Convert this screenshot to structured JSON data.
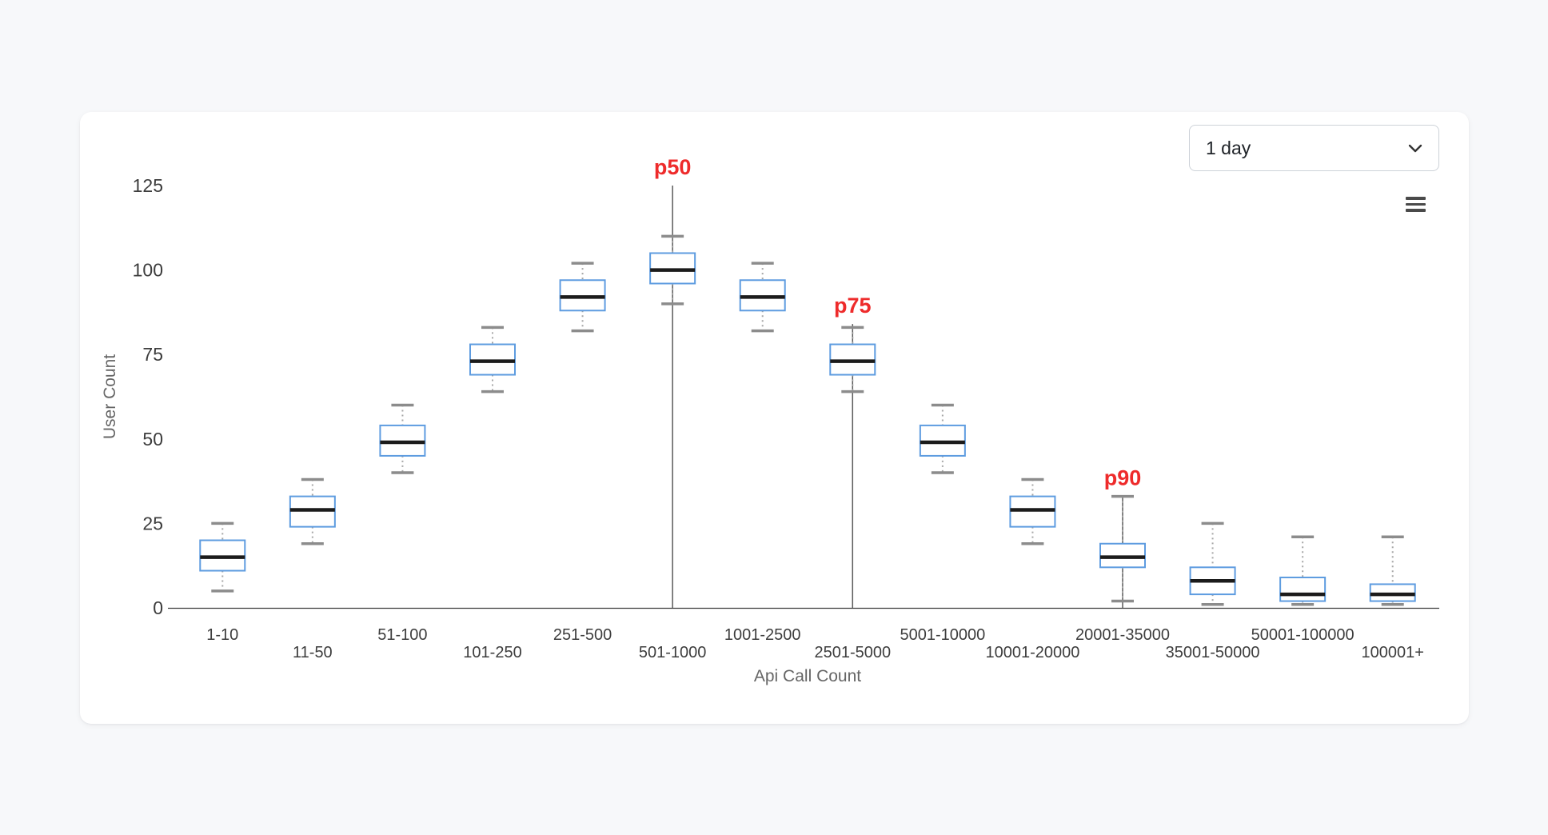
{
  "controls": {
    "period_selector": {
      "value": "1 day",
      "icon": "chevron-down-icon"
    },
    "menu_button": {
      "icon": "hamburger-menu-icon"
    }
  },
  "chart_data": {
    "type": "boxplot",
    "title": "",
    "xlabel": "Api Call Count",
    "ylabel": "User Count",
    "ylim": [
      0,
      125
    ],
    "yticks": [
      0,
      25,
      50,
      75,
      100,
      125
    ],
    "grid": false,
    "legend": "none",
    "categories": [
      "1-10",
      "11-50",
      "51-100",
      "101-250",
      "251-500",
      "501-1000",
      "1001-2500",
      "2501-5000",
      "5001-10000",
      "10001-20000",
      "20001-35000",
      "35001-50000",
      "50001-100000",
      "100001+"
    ],
    "value_format": [
      "low",
      "q1",
      "median",
      "q3",
      "high"
    ],
    "series": [
      {
        "name": "User Count",
        "values": [
          [
            5,
            11,
            15,
            20,
            25
          ],
          [
            19,
            24,
            29,
            33,
            38
          ],
          [
            40,
            45,
            49,
            54,
            60
          ],
          [
            64,
            69,
            73,
            78,
            83
          ],
          [
            82,
            88,
            92,
            97,
            102
          ],
          [
            90,
            96,
            100,
            105,
            110
          ],
          [
            82,
            88,
            92,
            97,
            102
          ],
          [
            64,
            69,
            73,
            78,
            83
          ],
          [
            40,
            45,
            49,
            54,
            60
          ],
          [
            19,
            24,
            29,
            33,
            38
          ],
          [
            2,
            12,
            15,
            19,
            33
          ],
          [
            1,
            4,
            8,
            12,
            25
          ],
          [
            1,
            2,
            4,
            9,
            21
          ],
          [
            1,
            2,
            4,
            7,
            21
          ]
        ]
      }
    ],
    "annotations": [
      {
        "label": "p50",
        "category": "501-1000",
        "line_top": 125
      },
      {
        "label": "p75",
        "category": "2501-5000",
        "line_top": 84
      },
      {
        "label": "p90",
        "category": "20001-35000",
        "line_top": 33
      }
    ],
    "colors": {
      "box_stroke": "#5e9ce0",
      "box_fill": "#ffffff",
      "median": "#1b1b1b",
      "whisker_cap": "#8c8c8c",
      "whisker_stem": "#a6a6a6",
      "annotation_line": "#5a5a5a",
      "annotation_label": "#ee2b2b",
      "axis_line": "#3c3c3c",
      "tick_label": "#3d3d3d",
      "axis_title": "#666666"
    }
  }
}
